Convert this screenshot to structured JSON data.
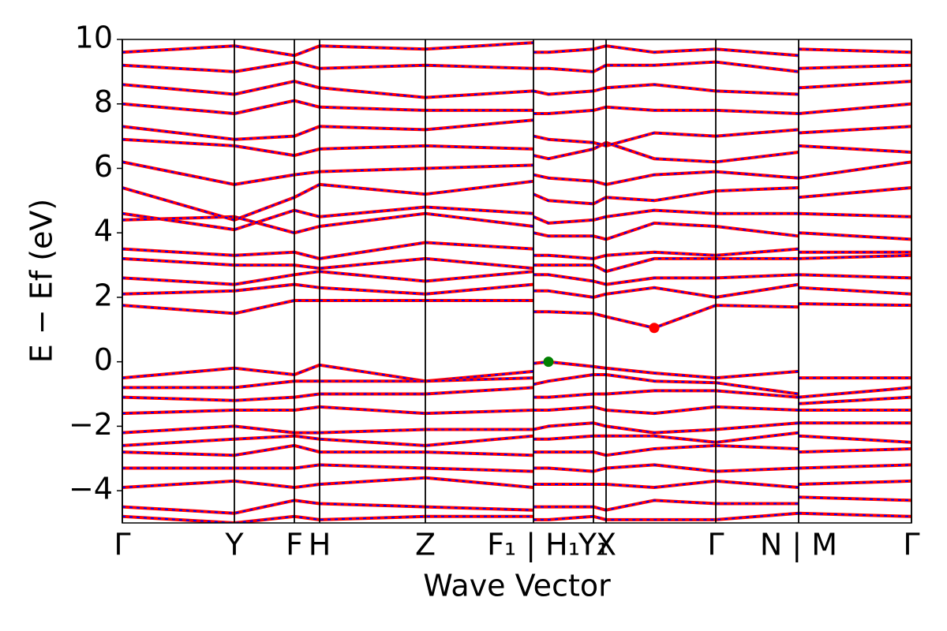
{
  "chart_data": {
    "type": "band",
    "xlabel": "Wave Vector",
    "ylabel": "E − Ef (eV)",
    "xlim": [
      0,
      1000
    ],
    "ylim": [
      -5,
      10
    ],
    "xticks": [
      {
        "value": 0,
        "label": "Γ"
      },
      {
        "value": 142,
        "label": "Y"
      },
      {
        "value": 218,
        "label": "F"
      },
      {
        "value": 250,
        "label": "H"
      },
      {
        "value": 384,
        "label": "Z"
      },
      {
        "value": 521,
        "label": "F₁ | H₁"
      },
      {
        "value": 597,
        "label": "Y₁"
      },
      {
        "value": 613,
        "label": "X"
      },
      {
        "value": 752,
        "label": "Γ"
      },
      {
        "value": 857,
        "label": "N | M"
      },
      {
        "value": 1000,
        "label": "Γ"
      }
    ],
    "yticks": [
      {
        "value": -4,
        "label": "−4"
      },
      {
        "value": -2,
        "label": "−2"
      },
      0,
      2,
      4,
      6,
      8,
      10
    ],
    "color": "#ff0000",
    "dash_color": "#0000ff",
    "x": [
      0,
      142,
      218,
      250,
      384,
      521,
      521,
      521,
      540,
      597,
      613,
      674,
      752,
      857,
      857,
      857,
      1000
    ],
    "bands": [
      [
        -0.5,
        -0.2,
        -0.4,
        -0.1,
        -0.6,
        -0.3,
        null,
        -0.05,
        0.0,
        -0.15,
        -0.2,
        -0.35,
        -0.5,
        -0.3,
        null,
        -0.5,
        -0.5
      ],
      [
        -0.8,
        -0.8,
        -0.6,
        -0.6,
        -0.6,
        -0.5,
        null,
        -0.7,
        -0.6,
        -0.4,
        -0.4,
        -0.6,
        -0.65,
        -1.0,
        null,
        -1.1,
        -0.8
      ],
      [
        -1.1,
        -1.2,
        -1.1,
        -1.0,
        -1.0,
        -0.8,
        null,
        -1.1,
        -1.1,
        -1.0,
        -1.0,
        -0.9,
        -0.9,
        -1.1,
        null,
        -1.3,
        -1.1
      ],
      [
        -1.6,
        -1.5,
        -1.5,
        -1.4,
        -1.6,
        -1.5,
        null,
        -1.5,
        -1.5,
        -1.4,
        -1.5,
        -1.6,
        -1.4,
        -1.5,
        null,
        -1.5,
        -1.5
      ],
      [
        -2.2,
        -2.0,
        -2.2,
        -2.2,
        -2.1,
        -2.1,
        null,
        -2.1,
        -2.0,
        -1.9,
        -2.0,
        -2.2,
        -2.1,
        -1.9,
        null,
        -1.9,
        -1.9
      ],
      [
        -2.6,
        -2.4,
        -2.3,
        -2.4,
        -2.6,
        -2.3,
        null,
        -2.4,
        -2.4,
        -2.3,
        -2.3,
        -2.3,
        -2.5,
        -2.2,
        null,
        -2.3,
        -2.5
      ],
      [
        -2.8,
        -2.9,
        -2.6,
        -2.8,
        -2.8,
        -2.9,
        null,
        -2.8,
        -2.8,
        -2.8,
        -2.9,
        -2.7,
        -2.6,
        -2.7,
        null,
        -2.8,
        -2.7
      ],
      [
        -3.3,
        -3.3,
        -3.3,
        -3.2,
        -3.3,
        -3.4,
        null,
        -3.3,
        -3.3,
        -3.4,
        -3.3,
        -3.2,
        -3.4,
        -3.3,
        null,
        -3.3,
        -3.2
      ],
      [
        -3.9,
        -3.7,
        -3.9,
        -3.8,
        -3.6,
        -3.9,
        null,
        -3.8,
        -3.8,
        -3.8,
        -3.8,
        -3.9,
        -3.7,
        -3.9,
        null,
        -3.8,
        -3.7
      ],
      [
        -4.5,
        -4.7,
        -4.3,
        -4.4,
        -4.5,
        -4.6,
        null,
        -4.5,
        -4.5,
        -4.5,
        -4.6,
        -4.3,
        -4.4,
        -4.4,
        null,
        -4.2,
        -4.3
      ],
      [
        -4.8,
        -5.0,
        -4.8,
        -4.9,
        -4.8,
        -4.8,
        null,
        -4.9,
        -4.9,
        -4.8,
        -4.9,
        -4.9,
        -4.9,
        -4.7,
        null,
        -4.7,
        -4.8
      ],
      [
        1.75,
        1.5,
        1.9,
        1.9,
        1.9,
        1.9,
        null,
        1.55,
        1.55,
        1.5,
        1.4,
        1.05,
        1.75,
        1.7,
        null,
        1.8,
        1.75
      ],
      [
        2.1,
        2.2,
        2.4,
        2.3,
        2.1,
        2.4,
        null,
        2.2,
        2.2,
        2.0,
        2.1,
        2.3,
        2.0,
        2.4,
        null,
        2.3,
        2.1
      ],
      [
        2.6,
        2.4,
        2.7,
        2.8,
        2.5,
        2.8,
        null,
        2.7,
        2.7,
        2.5,
        2.4,
        2.6,
        2.6,
        2.7,
        null,
        2.7,
        2.6
      ],
      [
        3.2,
        3.0,
        3.0,
        2.9,
        3.2,
        2.9,
        null,
        3.0,
        3.0,
        3.0,
        2.8,
        3.2,
        3.2,
        3.2,
        null,
        3.2,
        3.3
      ],
      [
        3.5,
        3.3,
        3.4,
        3.2,
        3.7,
        3.5,
        null,
        3.3,
        3.3,
        3.2,
        3.3,
        3.4,
        3.3,
        3.5,
        null,
        3.4,
        3.4
      ],
      [
        4.4,
        4.5,
        4.0,
        4.2,
        4.6,
        4.2,
        null,
        4.0,
        3.9,
        3.9,
        3.8,
        4.3,
        4.2,
        3.9,
        null,
        4.0,
        3.8
      ],
      [
        4.6,
        4.1,
        4.7,
        4.5,
        4.8,
        4.6,
        null,
        4.5,
        4.3,
        4.4,
        4.5,
        4.7,
        4.6,
        4.6,
        null,
        4.6,
        4.5
      ],
      [
        5.4,
        4.4,
        5.1,
        5.5,
        5.2,
        5.6,
        null,
        5.2,
        5.0,
        4.9,
        5.1,
        5.0,
        5.3,
        5.4,
        null,
        5.1,
        5.4
      ],
      [
        6.2,
        5.5,
        5.8,
        5.9,
        6.0,
        6.1,
        null,
        5.8,
        5.7,
        5.6,
        5.5,
        5.8,
        5.9,
        5.7,
        null,
        5.7,
        6.2
      ],
      [
        6.9,
        6.7,
        6.4,
        6.6,
        6.7,
        6.6,
        null,
        6.4,
        6.3,
        6.6,
        6.8,
        6.3,
        6.2,
        6.5,
        null,
        6.7,
        6.5
      ],
      [
        7.3,
        6.9,
        7.0,
        7.3,
        7.2,
        7.5,
        null,
        7.0,
        6.9,
        6.8,
        6.7,
        7.1,
        7.0,
        7.2,
        null,
        7.1,
        7.3
      ],
      [
        8.0,
        7.7,
        8.1,
        7.9,
        7.8,
        7.8,
        null,
        7.7,
        7.7,
        7.8,
        7.9,
        7.8,
        7.8,
        7.7,
        null,
        7.7,
        8.0
      ],
      [
        8.6,
        8.3,
        8.7,
        8.5,
        8.2,
        8.4,
        null,
        8.4,
        8.3,
        8.4,
        8.5,
        8.6,
        8.4,
        8.3,
        null,
        8.5,
        8.7
      ],
      [
        9.2,
        9.0,
        9.3,
        9.1,
        9.2,
        9.1,
        null,
        9.1,
        9.1,
        9.0,
        9.2,
        9.2,
        9.3,
        9.0,
        null,
        9.1,
        9.2
      ],
      [
        9.6,
        9.8,
        9.5,
        9.8,
        9.7,
        9.9,
        null,
        9.6,
        9.6,
        9.7,
        9.8,
        9.6,
        9.7,
        9.5,
        null,
        9.7,
        9.6
      ]
    ],
    "markers": [
      {
        "x": 540,
        "y": 0,
        "color": "#008000"
      },
      {
        "x": 674,
        "y": 1.05,
        "color": "#ff0000"
      }
    ]
  }
}
